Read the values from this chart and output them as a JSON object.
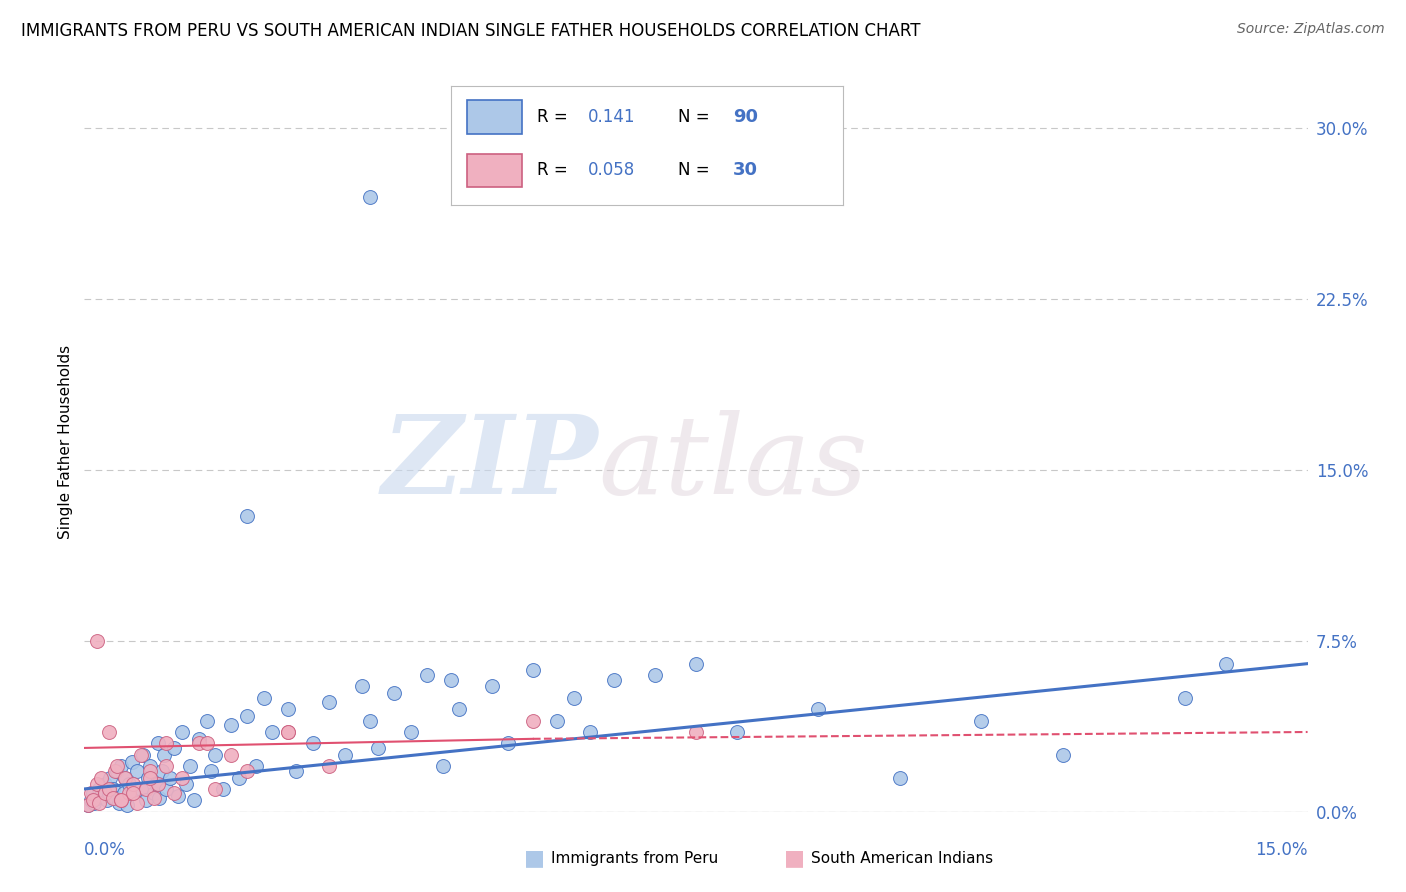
{
  "title": "IMMIGRANTS FROM PERU VS SOUTH AMERICAN INDIAN SINGLE FATHER HOUSEHOLDS CORRELATION CHART",
  "source": "Source: ZipAtlas.com",
  "ylabel": "Single Father Households",
  "ytick_vals": [
    0.0,
    7.5,
    15.0,
    22.5,
    30.0
  ],
  "xlim": [
    0.0,
    15.0
  ],
  "ylim": [
    0.0,
    32.5
  ],
  "color_blue": "#adc8e8",
  "color_pink": "#f0b0c0",
  "line_blue": "#4472c4",
  "line_pink": "#e05070",
  "blue_trend_x0": 0.0,
  "blue_trend_y0": 1.0,
  "blue_trend_x1": 15.0,
  "blue_trend_y1": 6.5,
  "pink_trend_x0": 0.0,
  "pink_trend_y0": 2.8,
  "pink_trend_x1": 5.5,
  "pink_trend_y1": 3.2,
  "pink_trend_dash_x0": 5.5,
  "pink_trend_dash_y0": 3.2,
  "pink_trend_dash_x1": 15.0,
  "pink_trend_dash_y1": 3.5,
  "blue_scatter_x": [
    0.05,
    0.08,
    0.1,
    0.12,
    0.15,
    0.18,
    0.2,
    0.22,
    0.25,
    0.28,
    0.3,
    0.32,
    0.35,
    0.38,
    0.4,
    0.42,
    0.45,
    0.48,
    0.5,
    0.52,
    0.55,
    0.58,
    0.6,
    0.65,
    0.7,
    0.72,
    0.75,
    0.78,
    0.8,
    0.85,
    0.88,
    0.9,
    0.92,
    0.95,
    0.98,
    1.0,
    1.05,
    1.1,
    1.15,
    1.2,
    1.25,
    1.3,
    1.35,
    1.4,
    1.5,
    1.55,
    1.6,
    1.7,
    1.8,
    1.9,
    2.0,
    2.1,
    2.2,
    2.3,
    2.5,
    2.6,
    2.8,
    3.0,
    3.2,
    3.4,
    3.5,
    3.6,
    3.8,
    4.0,
    4.2,
    4.4,
    4.5,
    4.6,
    5.0,
    5.2,
    5.5,
    5.8,
    6.0,
    6.2,
    6.5,
    7.0,
    7.5,
    8.0,
    9.0,
    10.0,
    11.0,
    12.0,
    13.5,
    14.0,
    3.5,
    2.0
  ],
  "blue_scatter_y": [
    0.3,
    0.5,
    0.8,
    0.4,
    0.6,
    1.0,
    0.7,
    0.9,
    1.2,
    0.5,
    0.8,
    1.5,
    1.0,
    0.6,
    1.8,
    0.4,
    2.0,
    0.8,
    1.5,
    0.3,
    1.2,
    2.2,
    0.9,
    1.8,
    1.0,
    2.5,
    0.5,
    1.5,
    2.0,
    0.8,
    1.2,
    3.0,
    0.6,
    1.8,
    2.5,
    1.0,
    1.5,
    2.8,
    0.7,
    3.5,
    1.2,
    2.0,
    0.5,
    3.2,
    4.0,
    1.8,
    2.5,
    1.0,
    3.8,
    1.5,
    4.2,
    2.0,
    5.0,
    3.5,
    4.5,
    1.8,
    3.0,
    4.8,
    2.5,
    5.5,
    4.0,
    2.8,
    5.2,
    3.5,
    6.0,
    2.0,
    5.8,
    4.5,
    5.5,
    3.0,
    6.2,
    4.0,
    5.0,
    3.5,
    5.8,
    6.0,
    6.5,
    3.5,
    4.5,
    1.5,
    4.0,
    2.5,
    5.0,
    6.5,
    27.0,
    13.0
  ],
  "pink_scatter_x": [
    0.05,
    0.08,
    0.1,
    0.15,
    0.18,
    0.2,
    0.25,
    0.3,
    0.35,
    0.38,
    0.4,
    0.45,
    0.5,
    0.55,
    0.6,
    0.65,
    0.7,
    0.75,
    0.8,
    0.85,
    0.9,
    1.0,
    1.1,
    1.2,
    1.4,
    1.6,
    1.8,
    2.0,
    2.5,
    3.0,
    0.15,
    0.3,
    0.45,
    0.6,
    0.8,
    1.0,
    1.5,
    2.5,
    5.5,
    7.5
  ],
  "pink_scatter_y": [
    0.3,
    0.8,
    0.5,
    1.2,
    0.4,
    1.5,
    0.8,
    1.0,
    0.6,
    1.8,
    2.0,
    0.5,
    1.5,
    0.8,
    1.2,
    0.4,
    2.5,
    1.0,
    1.8,
    0.6,
    1.2,
    2.0,
    0.8,
    1.5,
    3.0,
    1.0,
    2.5,
    1.8,
    3.5,
    2.0,
    7.5,
    3.5,
    0.5,
    0.8,
    1.5,
    3.0,
    3.0,
    3.5,
    4.0,
    3.5
  ]
}
